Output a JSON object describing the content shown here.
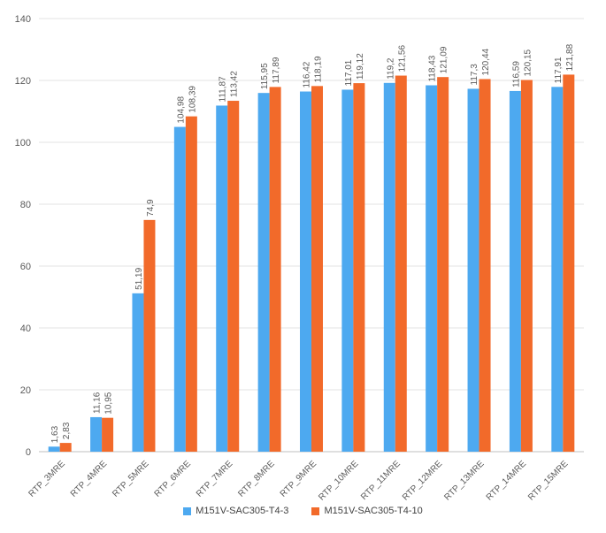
{
  "chart_data": {
    "type": "bar",
    "title": "",
    "xlabel": "",
    "ylabel": "",
    "ylim": [
      0,
      140
    ],
    "yticks": [
      0,
      20,
      40,
      60,
      80,
      100,
      120,
      140
    ],
    "grid": true,
    "legend_position": "bottom",
    "categories": [
      "RTP_3MRE",
      "RTP_4MRE",
      "RTP_5MRE",
      "RTP_6MRE",
      "RTP_7MRE",
      "RTP_8MRE",
      "RTP_9MRE",
      "RTP_10MRE",
      "RTP_11MRE",
      "RTP_12MRE",
      "RTP_13MRE",
      "RTP_14MRE",
      "RTP_15MRE"
    ],
    "series": [
      {
        "name": "M151V-SAC305-T4-3",
        "color": "#4da9f0",
        "values": [
          1.63,
          11.16,
          51.19,
          104.98,
          111.87,
          115.95,
          116.42,
          117.01,
          119.2,
          118.43,
          117.3,
          116.59,
          117.91
        ],
        "labels": [
          "1,63",
          "11,16",
          "51,19",
          "104,98",
          "111,87",
          "115,95",
          "116,42",
          "117,01",
          "119,2",
          "118,43",
          "117,3",
          "116,59",
          "117,91"
        ]
      },
      {
        "name": "M151V-SAC305-T4-10",
        "color": "#f26a2a",
        "values": [
          2.83,
          10.95,
          74.9,
          108.39,
          113.42,
          117.89,
          118.19,
          119.12,
          121.56,
          121.09,
          120.44,
          120.15,
          121.88
        ],
        "labels": [
          "2,83",
          "10,95",
          "74,9",
          "108,39",
          "113,42",
          "117,89",
          "118,19",
          "119,12",
          "121,56",
          "121,09",
          "120,44",
          "120,15",
          "121,88"
        ]
      }
    ]
  }
}
